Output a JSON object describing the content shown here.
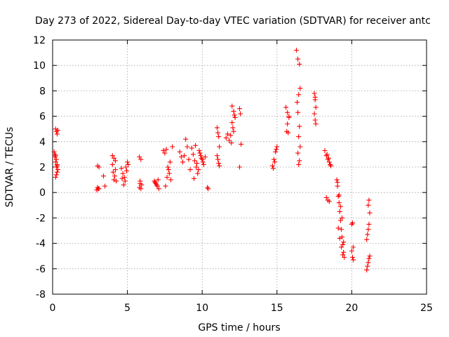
{
  "chart_data": {
    "type": "scatter",
    "title": "Day 273 of 2022, Sidereal Day-to-day VTEC variation (SDTVAR) for receiver antc",
    "xlabel": "GPS time / hours",
    "ylabel": "SDTVAR / TECUs",
    "xlim": [
      0,
      25
    ],
    "ylim": [
      -8,
      12
    ],
    "xticks": [
      0,
      5,
      10,
      15,
      20,
      25
    ],
    "yticks": [
      -8,
      -6,
      -4,
      -2,
      0,
      2,
      4,
      6,
      8,
      10,
      12
    ],
    "grid": true,
    "marker": "+",
    "color": "#ff0000",
    "series": [
      {
        "name": "SDTVAR",
        "x": [
          0.2,
          0.25,
          0.3,
          0.35,
          0.1,
          0.15,
          0.2,
          0.25,
          0.3,
          0.15,
          0.2,
          0.25,
          0.3,
          0.35,
          0.2,
          0.25,
          0.3,
          3.0,
          3.1,
          3.05,
          2.95,
          3.0,
          3.1,
          3.5,
          3.4,
          4.0,
          4.1,
          4.2,
          4.05,
          4.15,
          4.1,
          4.0,
          4.2,
          4.25,
          4.6,
          4.7,
          4.8,
          4.9,
          5.0,
          5.05,
          4.95,
          4.85,
          4.75,
          4.65,
          5.8,
          5.9,
          5.85,
          5.95,
          5.8,
          5.9,
          5.85,
          6.8,
          6.9,
          7.0,
          7.1,
          6.85,
          6.95,
          7.05,
          7.4,
          7.5,
          7.6,
          7.7,
          7.8,
          7.9,
          8.0,
          7.85,
          7.75,
          7.65,
          7.55,
          8.5,
          8.6,
          8.7,
          8.8,
          8.9,
          9.0,
          9.1,
          9.2,
          9.3,
          9.4,
          9.5,
          9.6,
          9.7,
          9.8,
          9.9,
          10.0,
          10.1,
          10.2,
          9.45,
          9.55,
          9.65,
          9.75,
          9.85,
          9.95,
          10.05,
          10.4,
          10.35,
          11.0,
          11.05,
          11.1,
          11.15,
          11.0,
          11.05,
          11.1,
          11.15,
          11.6,
          11.7,
          11.8,
          11.9,
          12.0,
          12.1,
          12.2,
          12.0,
          12.05,
          12.1,
          11.95,
          12.15,
          12.5,
          12.55,
          12.6,
          12.5,
          14.7,
          14.8,
          14.9,
          15.0,
          14.75,
          14.85,
          14.95,
          15.6,
          15.7,
          15.8,
          15.65,
          15.75,
          15.7,
          15.8,
          16.3,
          16.4,
          16.5,
          16.55,
          16.45,
          16.35,
          16.4,
          16.5,
          16.45,
          16.55,
          16.4,
          16.5,
          16.45,
          17.5,
          17.55,
          17.6,
          17.5,
          17.55,
          17.6,
          17.55,
          18.2,
          18.3,
          18.4,
          18.5,
          18.6,
          18.3,
          18.4,
          18.5,
          18.35,
          18.45,
          18.55,
          19.0,
          19.05,
          19.1,
          19.15,
          19.2,
          19.25,
          19.3,
          19.35,
          19.4,
          19.45,
          19.5,
          19.1,
          19.2,
          19.3,
          19.4,
          19.15,
          19.25,
          19.35,
          19.05,
          19.45,
          20.0,
          20.05,
          20.1,
          20.0,
          20.05,
          20.1,
          21.0,
          21.05,
          21.1,
          21.15,
          21.2,
          21.0,
          21.05,
          21.1,
          21.15,
          21.2,
          21.1,
          21.15
        ],
        "y": [
          5.0,
          4.8,
          4.6,
          4.9,
          3.2,
          2.8,
          2.4,
          2.0,
          1.6,
          3.0,
          1.2,
          2.6,
          2.2,
          1.8,
          2.9,
          1.4,
          2.1,
          2.1,
          2.0,
          0.3,
          0.2,
          0.4,
          0.3,
          0.5,
          1.3,
          2.9,
          2.7,
          2.5,
          1.6,
          1.3,
          1.0,
          2.2,
          1.8,
          0.9,
          1.9,
          1.5,
          1.2,
          2.0,
          2.4,
          2.2,
          1.7,
          0.9,
          0.6,
          1.1,
          2.8,
          2.6,
          0.9,
          0.6,
          0.4,
          0.3,
          0.7,
          0.9,
          0.7,
          0.5,
          0.3,
          0.8,
          0.6,
          1.0,
          3.3,
          3.1,
          3.4,
          2.0,
          1.5,
          1.0,
          3.6,
          2.4,
          1.8,
          1.2,
          0.5,
          3.2,
          2.8,
          2.4,
          2.9,
          4.2,
          3.6,
          2.6,
          1.8,
          3.5,
          3.0,
          2.5,
          2.0,
          1.5,
          3.3,
          2.9,
          2.6,
          2.2,
          2.8,
          1.1,
          3.7,
          2.3,
          1.8,
          3.1,
          2.7,
          2.4,
          0.3,
          0.4,
          5.1,
          4.7,
          4.4,
          3.6,
          2.9,
          2.6,
          2.3,
          2.1,
          4.3,
          4.6,
          4.1,
          4.5,
          6.8,
          6.4,
          5.9,
          5.5,
          5.1,
          4.8,
          3.9,
          6.1,
          6.6,
          6.2,
          3.8,
          2.0,
          2.1,
          2.6,
          3.2,
          3.6,
          1.9,
          2.4,
          3.4,
          6.7,
          6.3,
          5.9,
          4.8,
          4.7,
          5.4,
          6.0,
          11.2,
          10.5,
          10.1,
          8.2,
          7.7,
          7.1,
          6.3,
          5.2,
          4.4,
          3.6,
          3.1,
          2.5,
          2.2,
          7.8,
          7.3,
          6.7,
          6.2,
          5.7,
          5.4,
          7.5,
          3.3,
          2.9,
          2.6,
          2.4,
          2.1,
          -0.4,
          -0.6,
          -0.7,
          3.0,
          2.7,
          2.2,
          1.0,
          0.5,
          -0.3,
          -0.8,
          -1.5,
          -2.2,
          -2.9,
          -3.5,
          -4.1,
          -4.7,
          -5.1,
          -2.8,
          -3.6,
          -4.3,
          -4.9,
          -0.2,
          -1.1,
          -2.0,
          0.8,
          -3.9,
          -2.5,
          -2.4,
          -4.3,
          -4.6,
          -5.1,
          -5.3,
          -6.1,
          -5.8,
          -5.5,
          -5.2,
          -5.0,
          -3.7,
          -3.3,
          -2.9,
          -2.5,
          -1.6,
          -1.0,
          -0.6
        ]
      }
    ]
  }
}
